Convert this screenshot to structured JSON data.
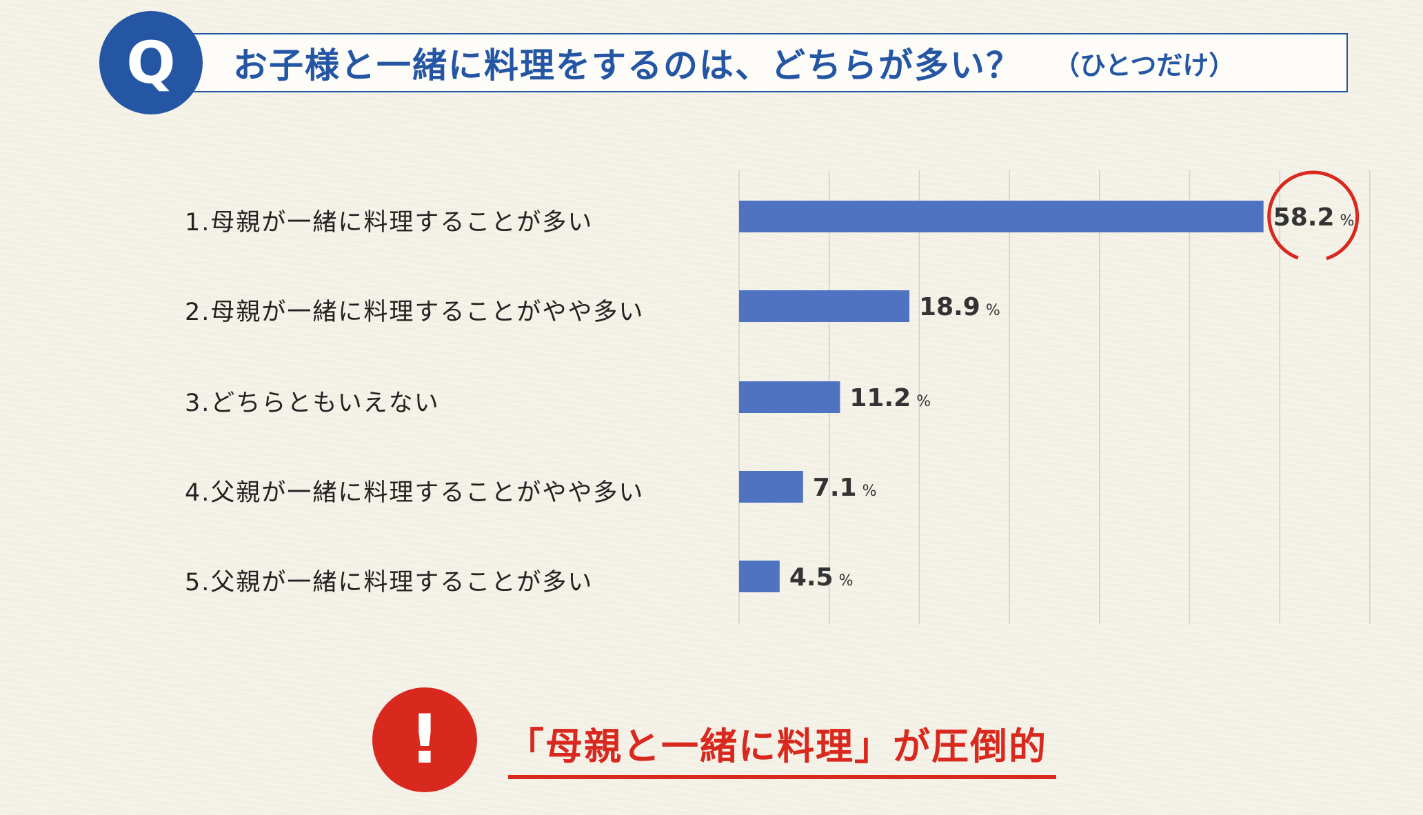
{
  "question": {
    "badge": "Q",
    "text": "お子様と一緒に料理をするのは、どちらが多い？",
    "note": "（ひとつだけ）"
  },
  "colors": {
    "bar": "#4f73c1",
    "accent_blue": "#2456a4",
    "accent_red": "#d9291f",
    "grid": "#cfcfcf"
  },
  "chart_data": {
    "type": "bar",
    "orientation": "horizontal",
    "categories": [
      "1.母親が一緒に料理することが多い",
      "2.母親が一緒に料理することがやや多い",
      "3.どちらともいえない",
      "4.父親が一緒に料理することがやや多い",
      "5.父親が一緒に料理することが多い"
    ],
    "values": [
      58.2,
      18.9,
      11.2,
      7.1,
      4.5
    ],
    "value_labels": [
      "58.2",
      "18.9",
      "11.2",
      "7.1",
      "4.5"
    ],
    "unit": "%",
    "xlim": [
      0,
      70
    ],
    "grid": true,
    "highlighted_category": 0
  },
  "conclusion": {
    "badge": "!",
    "text": "「母親と一緒に料理」が圧倒的"
  }
}
